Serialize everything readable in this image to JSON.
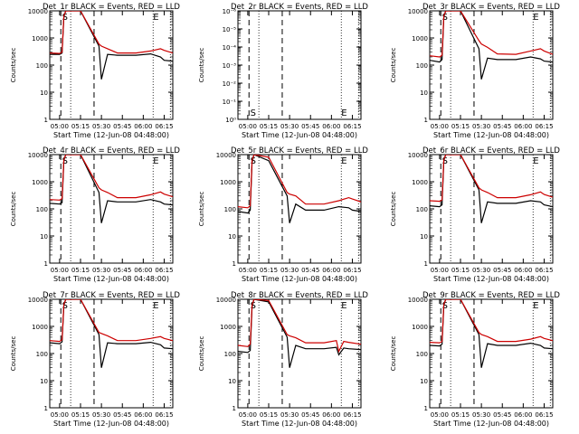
{
  "chart_data": [
    {
      "type": "line",
      "title": "Det_1r BLACK = Events, RED = LLD",
      "xlabel": "Start Time (12-Jun-08 04:48:00)",
      "ylabel": "Counts/sec",
      "y_scale": "log",
      "ylim": [
        1,
        10000
      ],
      "y_tick_labels": [
        "1",
        "10",
        "100",
        "1000",
        "10000"
      ],
      "x_tick_labels": [
        "05:00",
        "05:15",
        "05:30",
        "05:45",
        "06:00",
        "06:15"
      ],
      "markers": [
        "S",
        "E"
      ],
      "series": [
        {
          "name": "Events",
          "color": "#000000",
          "x": [
            0,
            8,
            10,
            11.5,
            13,
            25,
            40,
            42,
            47,
            55,
            70,
            82,
            90,
            93,
            100
          ],
          "y": [
            250,
            250,
            280,
            6000,
            10000,
            10000,
            500,
            30,
            250,
            230,
            230,
            260,
            200,
            150,
            140
          ]
        },
        {
          "name": "LLD",
          "color": "#cc0000",
          "x": [
            0,
            8,
            10,
            11.5,
            13,
            25,
            40,
            42,
            47,
            55,
            70,
            82,
            90,
            93,
            100
          ],
          "y": [
            280,
            270,
            300,
            6500,
            10000,
            10000,
            600,
            500,
            400,
            280,
            280,
            330,
            400,
            350,
            280
          ]
        }
      ]
    },
    {
      "type": "line",
      "title": "Det_2r BLACK = Events, RED = LLD",
      "xlabel": "Start Time (12-Jun-08 04:48:00)",
      "ylabel": "Counts/sec",
      "y_scale": "log",
      "ylim": [
        1,
        1e-06
      ],
      "y_tick_labels": [
        "10⁰",
        "10⁻¹",
        "10⁻²",
        "10⁻³",
        "10⁻⁴",
        "10⁻⁵",
        "10⁻⁶"
      ],
      "x_tick_labels": [
        "05:00",
        "05:15",
        "05:30",
        "05:45",
        "06:00",
        "06:15"
      ],
      "markers": [
        "S",
        "E"
      ],
      "series": []
    },
    {
      "type": "line",
      "title": "Det_3r BLACK = Events, RED = LLD",
      "xlabel": "Start Time (12-Jun-08 04:48:00)",
      "ylabel": "Counts/sec",
      "y_scale": "log",
      "ylim": [
        1,
        10000
      ],
      "y_tick_labels": [
        "1",
        "10",
        "100",
        "1000",
        "10000"
      ],
      "x_tick_labels": [
        "05:00",
        "05:15",
        "05:30",
        "05:45",
        "06:00",
        "06:15"
      ],
      "markers": [
        "S",
        "E"
      ],
      "series": [
        {
          "name": "Events",
          "color": "#000000",
          "x": [
            0,
            8,
            10,
            11.5,
            13,
            25,
            40,
            42,
            47,
            55,
            70,
            82,
            90,
            93,
            100
          ],
          "y": [
            150,
            130,
            160,
            6000,
            10000,
            10000,
            400,
            30,
            180,
            160,
            160,
            200,
            170,
            140,
            130
          ]
        },
        {
          "name": "LLD",
          "color": "#cc0000",
          "x": [
            0,
            8,
            10,
            11.5,
            13,
            25,
            40,
            42,
            47,
            55,
            70,
            82,
            90,
            93,
            100
          ],
          "y": [
            220,
            200,
            230,
            6500,
            10000,
            10000,
            800,
            600,
            450,
            260,
            250,
            330,
            400,
            330,
            250
          ]
        }
      ]
    },
    {
      "type": "line",
      "title": "Det_4r BLACK = Events, RED = LLD",
      "xlabel": "Start Time (12-Jun-08 04:48:00)",
      "ylabel": "Counts/sec",
      "y_scale": "log",
      "ylim": [
        1,
        10000
      ],
      "y_tick_labels": [
        "1",
        "10",
        "100",
        "1000",
        "10000"
      ],
      "x_tick_labels": [
        "05:00",
        "05:15",
        "05:30",
        "05:45",
        "06:00",
        "06:15"
      ],
      "markers": [
        "S",
        "E"
      ],
      "series": [
        {
          "name": "Events",
          "color": "#000000",
          "x": [
            0,
            8,
            10,
            11.5,
            13,
            25,
            40,
            42,
            47,
            55,
            70,
            82,
            90,
            93,
            100
          ],
          "y": [
            160,
            150,
            170,
            6000,
            10000,
            10000,
            400,
            30,
            200,
            180,
            180,
            220,
            180,
            150,
            140
          ]
        },
        {
          "name": "LLD",
          "color": "#cc0000",
          "x": [
            0,
            8,
            10,
            11.5,
            13,
            25,
            40,
            42,
            47,
            55,
            70,
            82,
            90,
            93,
            100
          ],
          "y": [
            220,
            210,
            240,
            6500,
            10000,
            10000,
            600,
            500,
            400,
            260,
            260,
            330,
            420,
            350,
            280
          ]
        }
      ]
    },
    {
      "type": "line",
      "title": "Det_5r BLACK = Events, RED = LLD",
      "xlabel": "Start Time (12-Jun-08 04:48:00)",
      "ylabel": "Counts/sec",
      "y_scale": "log",
      "ylim": [
        1,
        10000
      ],
      "y_tick_labels": [
        "1",
        "10",
        "100",
        "1000",
        "10000"
      ],
      "x_tick_labels": [
        "05:00",
        "05:15",
        "05:30",
        "05:45",
        "06:00",
        "06:15"
      ],
      "markers": [
        "S",
        "E"
      ],
      "series": [
        {
          "name": "Events",
          "color": "#000000",
          "x": [
            0,
            8,
            10,
            11.5,
            13,
            25,
            40,
            42,
            47,
            55,
            70,
            82,
            90,
            93,
            100
          ],
          "y": [
            80,
            70,
            90,
            5000,
            10000,
            6000,
            300,
            30,
            150,
            90,
            90,
            120,
            110,
            90,
            80
          ]
        },
        {
          "name": "LLD",
          "color": "#cc0000",
          "x": [
            0,
            8,
            10,
            11.5,
            13,
            25,
            40,
            42,
            47,
            55,
            70,
            82,
            90,
            93,
            100
          ],
          "y": [
            120,
            110,
            130,
            6000,
            10000,
            8000,
            400,
            350,
            300,
            150,
            150,
            200,
            260,
            230,
            180
          ]
        }
      ]
    },
    {
      "type": "line",
      "title": "Det_6r BLACK = Events, RED = LLD",
      "xlabel": "Start Time (12-Jun-08 04:48:00)",
      "ylabel": "Counts/sec",
      "y_scale": "log",
      "ylim": [
        1,
        10000
      ],
      "y_tick_labels": [
        "1",
        "10",
        "100",
        "1000",
        "10000"
      ],
      "x_tick_labels": [
        "05:00",
        "05:15",
        "05:30",
        "05:45",
        "06:00",
        "06:15"
      ],
      "markers": [
        "S",
        "E"
      ],
      "series": [
        {
          "name": "Events",
          "color": "#000000",
          "x": [
            0,
            8,
            10,
            11.5,
            13,
            25,
            40,
            42,
            47,
            55,
            70,
            82,
            90,
            93,
            100
          ],
          "y": [
            130,
            120,
            140,
            6000,
            10000,
            10000,
            500,
            30,
            180,
            160,
            160,
            200,
            180,
            140,
            120
          ]
        },
        {
          "name": "LLD",
          "color": "#cc0000",
          "x": [
            0,
            8,
            10,
            11.5,
            13,
            25,
            40,
            42,
            47,
            55,
            70,
            82,
            90,
            93,
            100
          ],
          "y": [
            200,
            190,
            210,
            6500,
            10000,
            10000,
            600,
            500,
            400,
            260,
            260,
            330,
            420,
            340,
            270
          ]
        }
      ]
    },
    {
      "type": "line",
      "title": "Det_7r BLACK = Events, RED = LLD",
      "xlabel": "Start Time (12-Jun-08 04:48:00)",
      "ylabel": "Counts/sec",
      "y_scale": "log",
      "ylim": [
        1,
        10000
      ],
      "y_tick_labels": [
        "1",
        "10",
        "100",
        "1000",
        "10000"
      ],
      "x_tick_labels": [
        "05:00",
        "05:15",
        "05:30",
        "05:45",
        "06:00",
        "06:15"
      ],
      "markers": [
        "S",
        "E"
      ],
      "series": [
        {
          "name": "Events",
          "color": "#000000",
          "x": [
            0,
            8,
            10,
            11.5,
            13,
            25,
            40,
            42,
            47,
            55,
            70,
            82,
            90,
            93,
            100
          ],
          "y": [
            250,
            230,
            270,
            6000,
            10000,
            10000,
            500,
            30,
            250,
            230,
            230,
            260,
            210,
            160,
            150
          ]
        },
        {
          "name": "LLD",
          "color": "#cc0000",
          "x": [
            0,
            8,
            10,
            11.5,
            13,
            25,
            40,
            42,
            47,
            55,
            70,
            82,
            90,
            93,
            100
          ],
          "y": [
            300,
            280,
            320,
            6500,
            10000,
            10000,
            600,
            550,
            450,
            300,
            300,
            360,
            420,
            360,
            300
          ]
        }
      ]
    },
    {
      "type": "line",
      "title": "Det_8r BLACK = Events, RED = LLD",
      "xlabel": "Start Time (12-Jun-08 04:48:00)",
      "ylabel": "Counts/sec",
      "y_scale": "log",
      "ylim": [
        1,
        10000
      ],
      "y_tick_labels": [
        "1",
        "10",
        "100",
        "1000",
        "10000"
      ],
      "x_tick_labels": [
        "05:00",
        "05:15",
        "05:30",
        "05:45",
        "06:00",
        "06:15"
      ],
      "markers": [
        "S",
        "E"
      ],
      "series": [
        {
          "name": "Events",
          "color": "#000000",
          "x": [
            0,
            8,
            10,
            11.5,
            13,
            25,
            40,
            42,
            47,
            55,
            70,
            80,
            82,
            86,
            90,
            100
          ],
          "y": [
            120,
            110,
            130,
            5000,
            10000,
            8000,
            400,
            30,
            200,
            150,
            150,
            170,
            90,
            160,
            150,
            140
          ]
        },
        {
          "name": "LLD",
          "color": "#cc0000",
          "x": [
            0,
            8,
            10,
            11.5,
            13,
            25,
            40,
            42,
            47,
            55,
            70,
            80,
            82,
            86,
            90,
            100
          ],
          "y": [
            200,
            180,
            220,
            6000,
            10000,
            9000,
            500,
            450,
            380,
            250,
            250,
            300,
            120,
            280,
            260,
            220
          ]
        }
      ]
    },
    {
      "type": "line",
      "title": "Det_9r BLACK = Events, RED = LLD",
      "xlabel": "Start Time (12-Jun-08 04:48:00)",
      "ylabel": "Counts/sec",
      "y_scale": "log",
      "ylim": [
        1,
        10000
      ],
      "y_tick_labels": [
        "1",
        "10",
        "100",
        "1000",
        "10000"
      ],
      "x_tick_labels": [
        "05:00",
        "05:15",
        "05:30",
        "05:45",
        "06:00",
        "06:15"
      ],
      "markers": [
        "S",
        "E"
      ],
      "series": [
        {
          "name": "Events",
          "color": "#000000",
          "x": [
            0,
            8,
            10,
            11.5,
            13,
            25,
            40,
            42,
            47,
            55,
            70,
            82,
            90,
            93,
            100
          ],
          "y": [
            200,
            190,
            220,
            6000,
            10000,
            10000,
            500,
            30,
            230,
            200,
            200,
            240,
            200,
            160,
            150
          ]
        },
        {
          "name": "LLD",
          "color": "#cc0000",
          "x": [
            0,
            8,
            10,
            11.5,
            13,
            25,
            40,
            42,
            47,
            55,
            70,
            82,
            90,
            93,
            100
          ],
          "y": [
            260,
            250,
            280,
            6500,
            10000,
            10000,
            600,
            500,
            420,
            280,
            280,
            340,
            420,
            360,
            300
          ]
        }
      ]
    }
  ]
}
